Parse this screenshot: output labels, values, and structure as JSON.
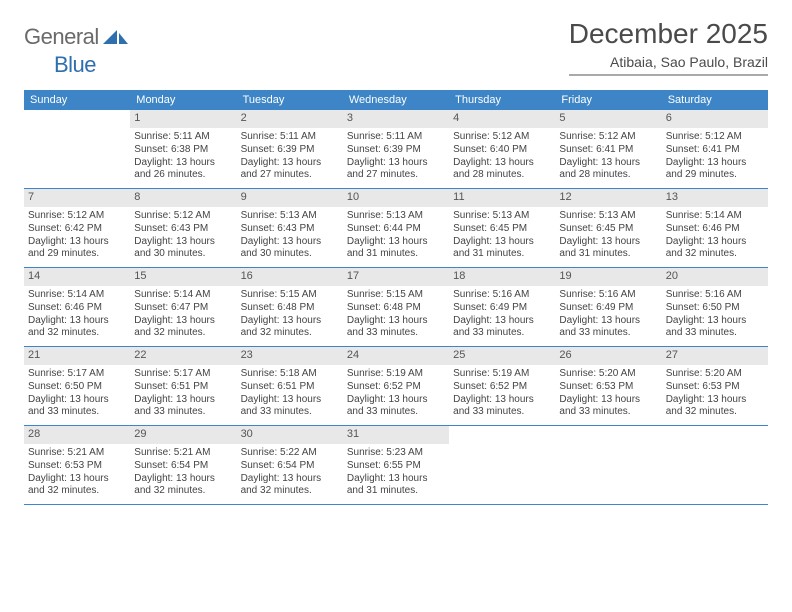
{
  "logo": {
    "text1": "General",
    "text2": "Blue"
  },
  "title": "December 2025",
  "location": "Atibaia, Sao Paulo, Brazil",
  "dow": [
    "Sunday",
    "Monday",
    "Tuesday",
    "Wednesday",
    "Thursday",
    "Friday",
    "Saturday"
  ],
  "colors": {
    "header_bg": "#3d85c6",
    "header_text": "#ffffff",
    "daynum_bg": "#e8e8e8",
    "border": "#3d85c6",
    "text": "#3a3a3a",
    "logo_grey": "#6a6a6a",
    "logo_blue": "#2f6fb0"
  },
  "first_weekday": 1,
  "days": [
    {
      "n": 1,
      "sunrise": "5:11 AM",
      "sunset": "6:38 PM",
      "daylight": "13 hours and 26 minutes."
    },
    {
      "n": 2,
      "sunrise": "5:11 AM",
      "sunset": "6:39 PM",
      "daylight": "13 hours and 27 minutes."
    },
    {
      "n": 3,
      "sunrise": "5:11 AM",
      "sunset": "6:39 PM",
      "daylight": "13 hours and 27 minutes."
    },
    {
      "n": 4,
      "sunrise": "5:12 AM",
      "sunset": "6:40 PM",
      "daylight": "13 hours and 28 minutes."
    },
    {
      "n": 5,
      "sunrise": "5:12 AM",
      "sunset": "6:41 PM",
      "daylight": "13 hours and 28 minutes."
    },
    {
      "n": 6,
      "sunrise": "5:12 AM",
      "sunset": "6:41 PM",
      "daylight": "13 hours and 29 minutes."
    },
    {
      "n": 7,
      "sunrise": "5:12 AM",
      "sunset": "6:42 PM",
      "daylight": "13 hours and 29 minutes."
    },
    {
      "n": 8,
      "sunrise": "5:12 AM",
      "sunset": "6:43 PM",
      "daylight": "13 hours and 30 minutes."
    },
    {
      "n": 9,
      "sunrise": "5:13 AM",
      "sunset": "6:43 PM",
      "daylight": "13 hours and 30 minutes."
    },
    {
      "n": 10,
      "sunrise": "5:13 AM",
      "sunset": "6:44 PM",
      "daylight": "13 hours and 31 minutes."
    },
    {
      "n": 11,
      "sunrise": "5:13 AM",
      "sunset": "6:45 PM",
      "daylight": "13 hours and 31 minutes."
    },
    {
      "n": 12,
      "sunrise": "5:13 AM",
      "sunset": "6:45 PM",
      "daylight": "13 hours and 31 minutes."
    },
    {
      "n": 13,
      "sunrise": "5:14 AM",
      "sunset": "6:46 PM",
      "daylight": "13 hours and 32 minutes."
    },
    {
      "n": 14,
      "sunrise": "5:14 AM",
      "sunset": "6:46 PM",
      "daylight": "13 hours and 32 minutes."
    },
    {
      "n": 15,
      "sunrise": "5:14 AM",
      "sunset": "6:47 PM",
      "daylight": "13 hours and 32 minutes."
    },
    {
      "n": 16,
      "sunrise": "5:15 AM",
      "sunset": "6:48 PM",
      "daylight": "13 hours and 32 minutes."
    },
    {
      "n": 17,
      "sunrise": "5:15 AM",
      "sunset": "6:48 PM",
      "daylight": "13 hours and 33 minutes."
    },
    {
      "n": 18,
      "sunrise": "5:16 AM",
      "sunset": "6:49 PM",
      "daylight": "13 hours and 33 minutes."
    },
    {
      "n": 19,
      "sunrise": "5:16 AM",
      "sunset": "6:49 PM",
      "daylight": "13 hours and 33 minutes."
    },
    {
      "n": 20,
      "sunrise": "5:16 AM",
      "sunset": "6:50 PM",
      "daylight": "13 hours and 33 minutes."
    },
    {
      "n": 21,
      "sunrise": "5:17 AM",
      "sunset": "6:50 PM",
      "daylight": "13 hours and 33 minutes."
    },
    {
      "n": 22,
      "sunrise": "5:17 AM",
      "sunset": "6:51 PM",
      "daylight": "13 hours and 33 minutes."
    },
    {
      "n": 23,
      "sunrise": "5:18 AM",
      "sunset": "6:51 PM",
      "daylight": "13 hours and 33 minutes."
    },
    {
      "n": 24,
      "sunrise": "5:19 AM",
      "sunset": "6:52 PM",
      "daylight": "13 hours and 33 minutes."
    },
    {
      "n": 25,
      "sunrise": "5:19 AM",
      "sunset": "6:52 PM",
      "daylight": "13 hours and 33 minutes."
    },
    {
      "n": 26,
      "sunrise": "5:20 AM",
      "sunset": "6:53 PM",
      "daylight": "13 hours and 33 minutes."
    },
    {
      "n": 27,
      "sunrise": "5:20 AM",
      "sunset": "6:53 PM",
      "daylight": "13 hours and 32 minutes."
    },
    {
      "n": 28,
      "sunrise": "5:21 AM",
      "sunset": "6:53 PM",
      "daylight": "13 hours and 32 minutes."
    },
    {
      "n": 29,
      "sunrise": "5:21 AM",
      "sunset": "6:54 PM",
      "daylight": "13 hours and 32 minutes."
    },
    {
      "n": 30,
      "sunrise": "5:22 AM",
      "sunset": "6:54 PM",
      "daylight": "13 hours and 32 minutes."
    },
    {
      "n": 31,
      "sunrise": "5:23 AM",
      "sunset": "6:55 PM",
      "daylight": "13 hours and 31 minutes."
    }
  ],
  "labels": {
    "sunrise": "Sunrise:",
    "sunset": "Sunset:",
    "daylight": "Daylight:"
  }
}
